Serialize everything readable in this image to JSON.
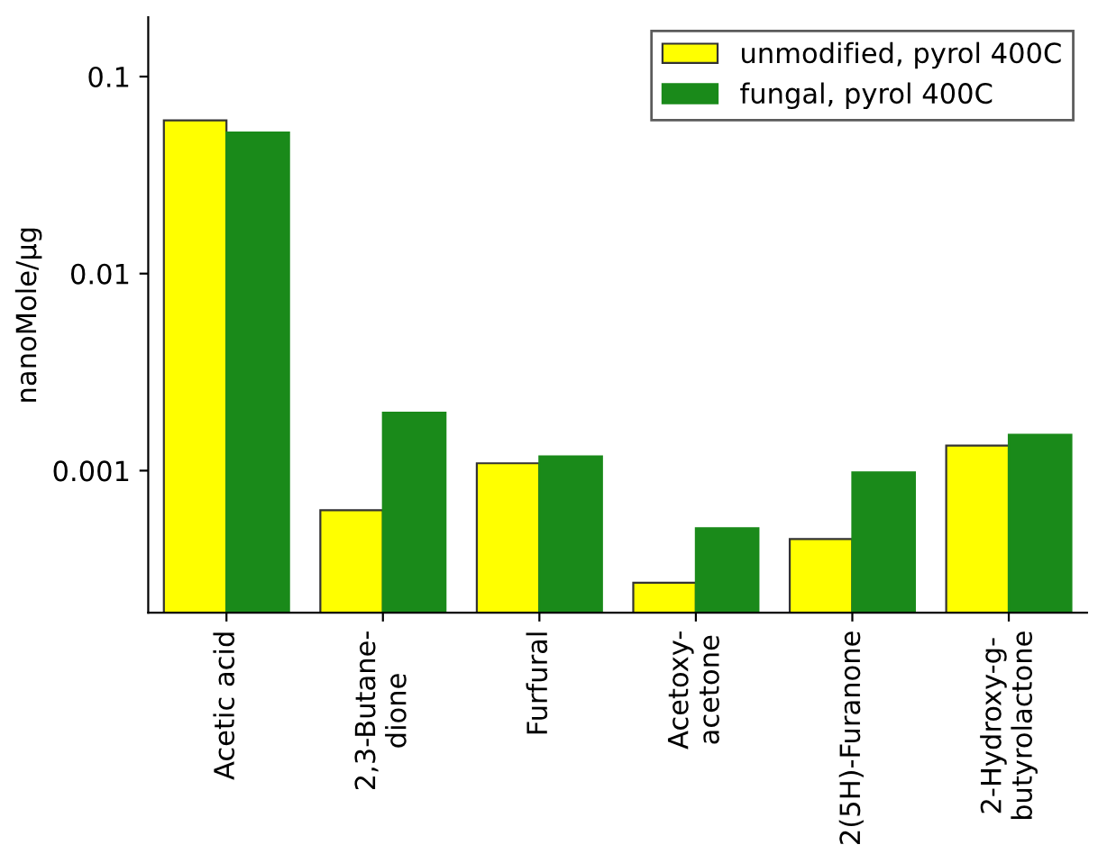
{
  "chart_data": {
    "type": "bar",
    "ylabel": "nanoMole/µg",
    "log": true,
    "categories": [
      "Acetic acid",
      "2,3-Butane-\ndione",
      "Furfural",
      "Acetoxy-\nacetone",
      "2(5H)-Furanone",
      "2-Hydroxy-g-\nbutyrolactone"
    ],
    "series": [
      {
        "name": "unmodified, pyrol 400C",
        "color": "#ffff00",
        "values": [
          0.06,
          0.00063,
          0.00109,
          0.00027,
          0.00045,
          0.00134
        ]
      },
      {
        "name": "fungal, pyrol 400C",
        "color": "#1a8a1a",
        "values": [
          0.052,
          0.00197,
          0.00118,
          0.00051,
          0.00098,
          0.00152
        ]
      }
    ],
    "ylim": [
      0.00019,
      0.2
    ],
    "yticks": [
      0.001,
      0.01,
      0.1
    ],
    "grid": false,
    "legend": "top right"
  }
}
